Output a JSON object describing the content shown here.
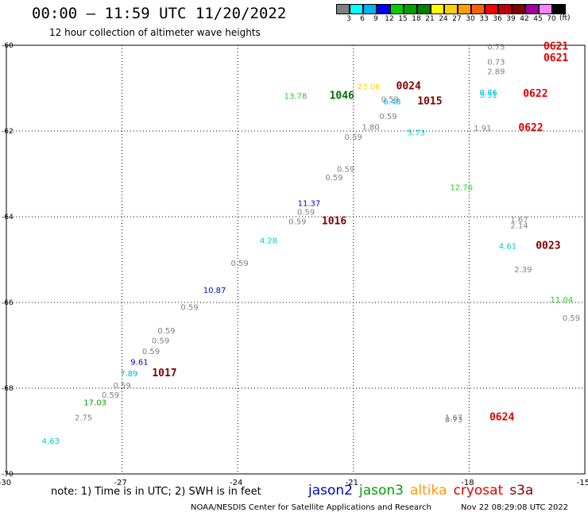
{
  "header": {
    "title": "00:00 – 11:59 UTC 11/20/2022",
    "subtitle": "12 hour collection of altimeter wave heights"
  },
  "legend": {
    "unit": "(ft)",
    "colors": [
      "#808080",
      "#00ffff",
      "#00b0f0",
      "#0000ff",
      "#00d000",
      "#00a000",
      "#008000",
      "#ffff00",
      "#ffd000",
      "#ffa000",
      "#ff6000",
      "#ff0000",
      "#c00000",
      "#800000",
      "#a000a0",
      "#ff80ff",
      "#000000"
    ],
    "labels": [
      "3",
      "6",
      "9",
      "12",
      "15",
      "18",
      "21",
      "24",
      "27",
      "30",
      "33",
      "36",
      "39",
      "42",
      "45",
      "70"
    ]
  },
  "footer": {
    "note": "note: 1) Time is in UTC; 2) SWH is in feet",
    "credit": "NOAA/NESDIS Center for Satellite Applications and Research",
    "timestamp": "Nov 22 08:29:08 UTC 2022",
    "satellites": [
      {
        "name": "jason2",
        "color": "#0000d0"
      },
      {
        "name": "jason3",
        "color": "#00a000"
      },
      {
        "name": "altika",
        "color": "#ff9900"
      },
      {
        "name": "cryosat",
        "color": "#e00000"
      },
      {
        "name": "s3a",
        "color": "#800000"
      }
    ]
  },
  "chart_data": {
    "type": "scatter",
    "xlim": [
      -30,
      -15
    ],
    "ylim": [
      -70,
      -60
    ],
    "x_ticks": [
      -30,
      -27,
      -24,
      -21,
      -18,
      -15
    ],
    "y_ticks": [
      -60,
      -62,
      -64,
      -66,
      -68,
      -70
    ],
    "x_tick_labels": [
      "-30",
      "-27",
      "-24",
      "-21",
      "-18",
      "-15"
    ],
    "y_tick_labels": [
      "-60",
      "-62",
      "-64",
      "-66",
      "-68",
      "-70"
    ],
    "grid": true,
    "points": [
      {
        "x": -17.3,
        "y": -60.1,
        "label": "0.73",
        "color": "#808080"
      },
      {
        "x": -17.3,
        "y": -60.45,
        "label": "0.73",
        "color": "#808080"
      },
      {
        "x": -17.3,
        "y": -60.68,
        "label": "2.89",
        "color": "#808080"
      },
      {
        "x": -15.75,
        "y": -60.1,
        "label": "0621",
        "color": "#e00000"
      },
      {
        "x": -15.75,
        "y": -60.37,
        "label": "0621",
        "color": "#e00000"
      },
      {
        "x": -17.5,
        "y": -61.17,
        "label": "0.86",
        "color": "#00b0f0"
      },
      {
        "x": -17.5,
        "y": -61.22,
        "label": "5.31",
        "color": "#00cccc"
      },
      {
        "x": -16.28,
        "y": -61.2,
        "label": "0622",
        "color": "#e00000"
      },
      {
        "x": -17.65,
        "y": -62.0,
        "label": "1.91",
        "color": "#808080"
      },
      {
        "x": -16.4,
        "y": -62.0,
        "label": "0622",
        "color": "#e00000"
      },
      {
        "x": -22.5,
        "y": -61.25,
        "label": "13.78",
        "color": "#22cc22"
      },
      {
        "x": -21.3,
        "y": -61.25,
        "label": "1046",
        "color": "#007000"
      },
      {
        "x": -20.6,
        "y": -61.03,
        "label": "23.06",
        "color": "#ffd000"
      },
      {
        "x": -19.57,
        "y": -61.03,
        "label": "0024",
        "color": "#800000"
      },
      {
        "x": -20.05,
        "y": -61.32,
        "label": "0.59",
        "color": "#808080"
      },
      {
        "x": -20.0,
        "y": -61.38,
        "label": "6.48",
        "color": "#00b0f0"
      },
      {
        "x": -19.02,
        "y": -61.38,
        "label": "1015",
        "color": "#800000"
      },
      {
        "x": -20.1,
        "y": -61.72,
        "label": "0.59",
        "color": "#808080"
      },
      {
        "x": -20.55,
        "y": -61.97,
        "label": "1.80",
        "color": "#808080"
      },
      {
        "x": -21.0,
        "y": -62.2,
        "label": "0.59",
        "color": "#808080"
      },
      {
        "x": -19.37,
        "y": -62.1,
        "label": "5.73",
        "color": "#00cccc"
      },
      {
        "x": -21.2,
        "y": -62.95,
        "label": "0.59",
        "color": "#808080"
      },
      {
        "x": -21.5,
        "y": -63.15,
        "label": "0.59",
        "color": "#808080"
      },
      {
        "x": -18.2,
        "y": -63.38,
        "label": "12.76",
        "color": "#22cc22"
      },
      {
        "x": -22.15,
        "y": -63.75,
        "label": "11.37",
        "color": "#0000d0"
      },
      {
        "x": -22.23,
        "y": -63.95,
        "label": "0.59",
        "color": "#808080"
      },
      {
        "x": -22.45,
        "y": -64.18,
        "label": "0.59",
        "color": "#808080"
      },
      {
        "x": -21.5,
        "y": -64.18,
        "label": "1016",
        "color": "#800000"
      },
      {
        "x": -16.7,
        "y": -64.13,
        "label": "1.67",
        "color": "#808080"
      },
      {
        "x": -16.7,
        "y": -64.27,
        "label": "2.14",
        "color": "#808080"
      },
      {
        "x": -23.2,
        "y": -64.62,
        "label": "4.28",
        "color": "#00cccc"
      },
      {
        "x": -17.0,
        "y": -64.75,
        "label": "4.61",
        "color": "#00cccc"
      },
      {
        "x": -15.95,
        "y": -64.75,
        "label": "0023",
        "color": "#800000"
      },
      {
        "x": -23.95,
        "y": -65.15,
        "label": "0.59",
        "color": "#808080"
      },
      {
        "x": -16.6,
        "y": -65.3,
        "label": "2.39",
        "color": "#808080"
      },
      {
        "x": -24.6,
        "y": -65.78,
        "label": "10.87",
        "color": "#0000d0"
      },
      {
        "x": -25.25,
        "y": -66.18,
        "label": "0.59",
        "color": "#808080"
      },
      {
        "x": -15.6,
        "y": -66.0,
        "label": "11.04",
        "color": "#22cc22"
      },
      {
        "x": -15.35,
        "y": -66.43,
        "label": "0.59",
        "color": "#808080"
      },
      {
        "x": -25.85,
        "y": -66.72,
        "label": "0.59",
        "color": "#808080"
      },
      {
        "x": -26.0,
        "y": -66.95,
        "label": "0.59",
        "color": "#808080"
      },
      {
        "x": -26.25,
        "y": -67.2,
        "label": "0.59",
        "color": "#808080"
      },
      {
        "x": -26.55,
        "y": -67.45,
        "label": "9.61",
        "color": "#0000d0"
      },
      {
        "x": -26.82,
        "y": -67.72,
        "label": "7.89",
        "color": "#00b0f0"
      },
      {
        "x": -25.9,
        "y": -67.72,
        "label": "1017",
        "color": "#800000"
      },
      {
        "x": -27.0,
        "y": -68.0,
        "label": "0.59",
        "color": "#808080"
      },
      {
        "x": -27.3,
        "y": -68.22,
        "label": "0.59",
        "color": "#808080"
      },
      {
        "x": -27.7,
        "y": -68.4,
        "label": "17.03",
        "color": "#00a000"
      },
      {
        "x": -28.0,
        "y": -68.75,
        "label": "2.75",
        "color": "#808080"
      },
      {
        "x": -18.4,
        "y": -68.75,
        "label": "1.67",
        "color": "#808080"
      },
      {
        "x": -18.4,
        "y": -68.8,
        "label": "0.73",
        "color": "#808080"
      },
      {
        "x": -17.15,
        "y": -68.75,
        "label": "0624",
        "color": "#e00000"
      },
      {
        "x": -28.85,
        "y": -69.3,
        "label": "4.63",
        "color": "#00cccc"
      }
    ]
  }
}
